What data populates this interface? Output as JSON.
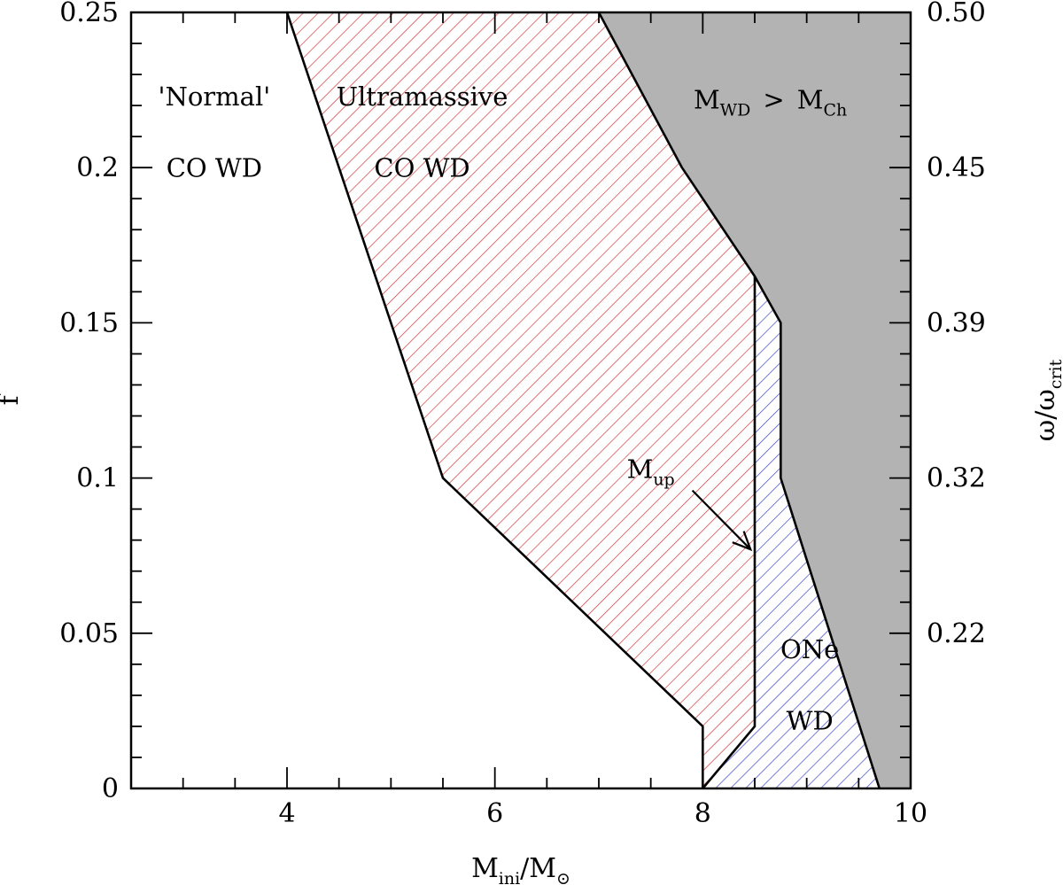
{
  "chart_data": {
    "type": "area",
    "title": "",
    "xlabel": {
      "main": "M",
      "sub": "ini",
      "rest": "/M",
      "symbol": "⊙"
    },
    "ylabel": "f",
    "y2label": {
      "a": "ω/ω",
      "sub": "crit"
    },
    "xlim": [
      2.5,
      10
    ],
    "ylim": [
      0,
      0.25
    ],
    "x_ticks": [
      4,
      6,
      8,
      10
    ],
    "x_minor_step": 0.5,
    "y_ticks": [
      0,
      0.05,
      0.1,
      0.15,
      0.2,
      0.25
    ],
    "y_tick_labels": [
      "0",
      "0.05",
      "0.1",
      "0.15",
      "0.2",
      "0.25"
    ],
    "y_minor_step": 0.01,
    "y2_ticks": [
      {
        "f": 0.05,
        "label": "0.22"
      },
      {
        "f": 0.1,
        "label": "0.32"
      },
      {
        "f": 0.15,
        "label": "0.39"
      },
      {
        "f": 0.2,
        "label": "0.45"
      },
      {
        "f": 0.25,
        "label": "0.50"
      }
    ],
    "regions": [
      {
        "name": "Ultramassive CO WD",
        "fill": "hatch",
        "hatch_color": "#d23a3a",
        "polygon": [
          [
            4.0,
            0.25
          ],
          [
            7.0,
            0.25
          ],
          [
            7.8,
            0.2
          ],
          [
            8.5,
            0.165
          ],
          [
            8.5,
            0.02
          ],
          [
            8.0,
            0.0
          ],
          [
            8.0,
            0.02
          ],
          [
            5.5,
            0.1
          ]
        ]
      },
      {
        "name": "ONe WD",
        "fill": "hatch",
        "hatch_color": "#3b46c4",
        "polygon": [
          [
            8.0,
            0.0
          ],
          [
            8.5,
            0.02
          ],
          [
            8.5,
            0.165
          ],
          [
            8.75,
            0.15
          ],
          [
            8.75,
            0.1
          ],
          [
            9.7,
            0.0
          ]
        ]
      },
      {
        "name": "M_WD > M_Ch",
        "fill": "solid",
        "color": "#b3b3b3",
        "polygon": [
          [
            7.0,
            0.25
          ],
          [
            10.0,
            0.25
          ],
          [
            10.0,
            0.0
          ],
          [
            9.7,
            0.0
          ],
          [
            8.75,
            0.1
          ],
          [
            8.75,
            0.15
          ],
          [
            8.5,
            0.165
          ],
          [
            7.8,
            0.2
          ]
        ]
      }
    ],
    "boundaries": [
      {
        "name": "normal-ultramassive-boundary",
        "points": [
          [
            4.0,
            0.25
          ],
          [
            5.5,
            0.1
          ],
          [
            8.0,
            0.02
          ],
          [
            8.0,
            0.0
          ]
        ]
      },
      {
        "name": "co-one-boundary",
        "points": [
          [
            8.0,
            0.0
          ],
          [
            8.5,
            0.02
          ],
          [
            8.5,
            0.165
          ]
        ]
      },
      {
        "name": "chandrasekhar-boundary",
        "points": [
          [
            7.0,
            0.25
          ],
          [
            7.8,
            0.2
          ],
          [
            8.5,
            0.165
          ],
          [
            8.75,
            0.15
          ],
          [
            8.75,
            0.1
          ],
          [
            9.7,
            0.0
          ]
        ]
      }
    ],
    "labels": {
      "normal_line1": "'Normal'",
      "normal_line2": "CO WD",
      "ultra_line1": "Ultramassive",
      "ultra_line2": "CO WD",
      "mch_main": "M",
      "mch_sub": "WD",
      "mch_gt": ">",
      "mch_main2": "M",
      "mch_sub2": "Ch",
      "one_line1": "ONe",
      "one_line2": "WD",
      "mup_main": "M",
      "mup_sub": "up"
    },
    "annotations": [
      {
        "name": "mup-arrow",
        "from": [
          7.9,
          0.096
        ],
        "to": [
          8.46,
          0.077
        ]
      }
    ],
    "label_positions": {
      "normal_line1": [
        3.3,
        0.22
      ],
      "normal_line2": [
        3.3,
        0.197
      ],
      "ultra_line1": [
        5.3,
        0.22
      ],
      "ultra_line2": [
        5.3,
        0.197
      ],
      "mch": [
        8.65,
        0.219
      ],
      "one_line1": [
        9.03,
        0.042
      ],
      "one_line2": [
        9.03,
        0.019
      ],
      "mup": [
        7.5,
        0.1
      ]
    }
  }
}
